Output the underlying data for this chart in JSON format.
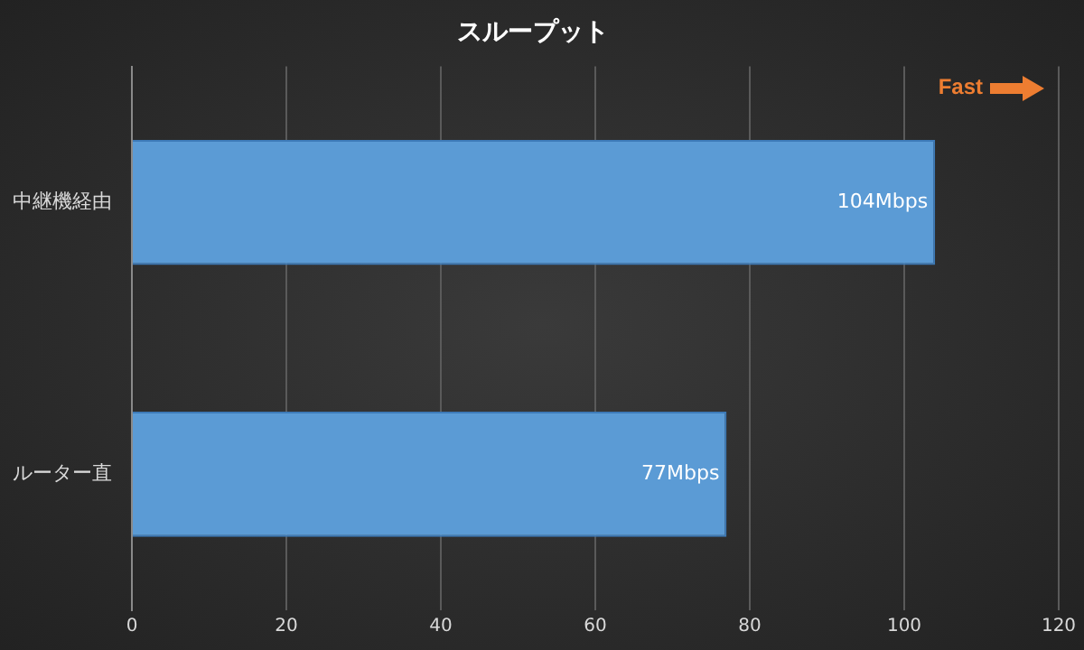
{
  "chart_data": {
    "type": "bar",
    "orientation": "horizontal",
    "title": "スループット",
    "categories": [
      "中継機経由",
      "ルーター直"
    ],
    "values": [
      104,
      77
    ],
    "color": "#5b9bd5",
    "value_labels": [
      "104Mbps",
      "77Mbps"
    ],
    "xlim": [
      0,
      120
    ],
    "xticks": [
      0,
      20,
      40,
      60,
      80,
      100,
      120
    ],
    "grid": "x",
    "legend": false,
    "annotations": [
      "Fast"
    ]
  }
}
